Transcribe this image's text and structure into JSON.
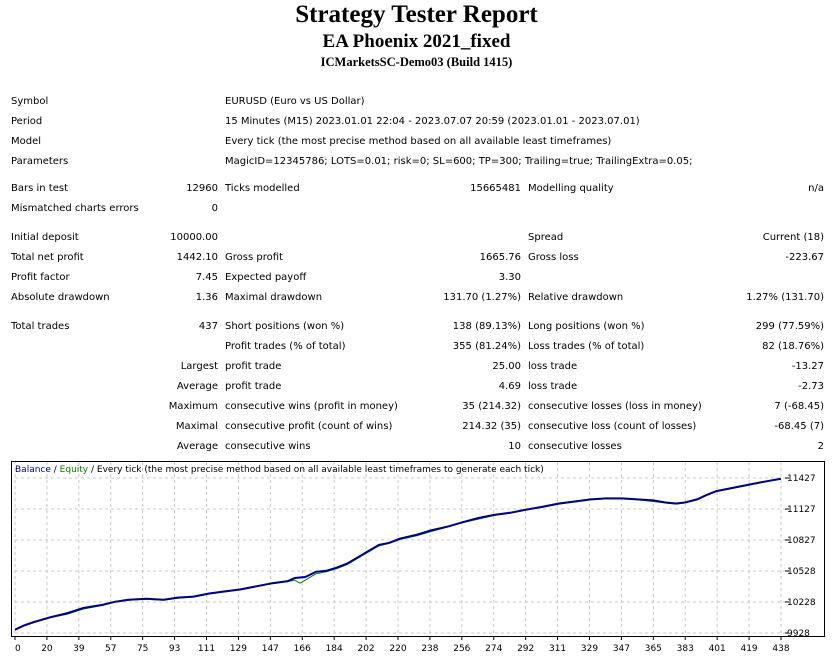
{
  "title": "Strategy Tester Report",
  "ea_name": "EA Phoenix 2021_fixed",
  "server": "ICMarketsSC-Demo03 (Build 1415)",
  "info": {
    "symbol_label": "Symbol",
    "symbol": "EURUSD (Euro vs US Dollar)",
    "period_label": "Period",
    "period": "15 Minutes (M15) 2023.01.01 22:04 - 2023.07.07 20:59 (2023.01.01 - 2023.07.01)",
    "model_label": "Model",
    "model": "Every tick (the most precise method based on all available least timeframes)",
    "params_label": "Parameters",
    "params": "MagicID=12345786; LOTS=0.01; risk=0; SL=600; TP=300; Trailing=true; TrailingExtra=0.05;"
  },
  "bars": {
    "label": "Bars in test",
    "value": "12960",
    "ticks_label": "Ticks modelled",
    "ticks": "15665481",
    "quality_label": "Modelling quality",
    "quality": "n/a"
  },
  "mismatch": {
    "label": "Mismatched charts errors",
    "value": "0"
  },
  "stats": {
    "initial_deposit_label": "Initial deposit",
    "initial_deposit": "10000.00",
    "spread_label": "Spread",
    "spread": "Current (18)",
    "net_profit_label": "Total net profit",
    "net_profit": "1442.10",
    "gross_profit_label": "Gross profit",
    "gross_profit": "1665.76",
    "gross_loss_label": "Gross loss",
    "gross_loss": "-223.67",
    "profit_factor_label": "Profit factor",
    "profit_factor": "7.45",
    "expected_payoff_label": "Expected payoff",
    "expected_payoff": "3.30",
    "abs_dd_label": "Absolute drawdown",
    "abs_dd": "1.36",
    "max_dd_label": "Maximal drawdown",
    "max_dd": "131.70 (1.27%)",
    "rel_dd_label": "Relative drawdown",
    "rel_dd": "1.27% (131.70)"
  },
  "trades": {
    "total_label": "Total trades",
    "total": "437",
    "short_label": "Short positions (won %)",
    "short": "138 (89.13%)",
    "long_label": "Long positions (won %)",
    "long": "299 (77.59%)",
    "profit_trades_label": "Profit trades (% of total)",
    "profit_trades": "355 (81.24%)",
    "loss_trades_label": "Loss trades (% of total)",
    "loss_trades": "82 (18.76%)",
    "largest_label": "Largest",
    "largest_profit_label": "profit trade",
    "largest_profit": "25.00",
    "largest_loss_label": "loss trade",
    "largest_loss": "-13.27",
    "average_label": "Average",
    "average_profit_label": "profit trade",
    "average_profit": "4.69",
    "average_loss_label": "loss trade",
    "average_loss": "-2.73",
    "maximum_label": "Maximum",
    "max_wins_label": "consecutive wins (profit in money)",
    "max_wins": "35 (214.32)",
    "max_losses_label": "consecutive losses (loss in money)",
    "max_losses": "7 (-68.45)",
    "maximal_label": "Maximal",
    "maxl_profit_label": "consecutive profit (count of wins)",
    "maxl_profit": "214.32 (35)",
    "maxl_loss_label": "consecutive loss (count of losses)",
    "maxl_loss": "-68.45 (7)",
    "avg_label": "Average",
    "avg_wins_label": "consecutive wins",
    "avg_wins": "10",
    "avg_losses_label": "consecutive losses",
    "avg_losses": "2"
  },
  "chart_data": {
    "type": "line",
    "legend": {
      "balance": "Balance",
      "sep1": " / ",
      "equity": "Equity",
      "rest": " / Every tick (the most precise method based on all available least timeframes to generate each tick)"
    },
    "colors": {
      "balance": "#00008B",
      "equity": "#008000",
      "grid": "#c8c8c8"
    },
    "x_ticks": [
      "0",
      "20",
      "39",
      "57",
      "75",
      "93",
      "111",
      "129",
      "147",
      "166",
      "184",
      "202",
      "220",
      "238",
      "256",
      "274",
      "292",
      "311",
      "329",
      "347",
      "365",
      "383",
      "401",
      "419",
      "438"
    ],
    "y_ticks": [
      "11427",
      "11127",
      "10827",
      "10528",
      "10228",
      "9928"
    ],
    "xlim": [
      0,
      438
    ],
    "ylim": [
      9928,
      11427
    ],
    "grid": true,
    "series": [
      {
        "name": "Balance",
        "x": [
          0,
          5,
          10,
          20,
          30,
          39,
          50,
          57,
          65,
          75,
          85,
          93,
          102,
          111,
          120,
          129,
          138,
          147,
          156,
          160,
          166,
          172,
          178,
          184,
          190,
          196,
          202,
          208,
          214,
          220,
          230,
          238,
          248,
          256,
          265,
          274,
          283,
          292,
          302,
          311,
          320,
          329,
          338,
          347,
          356,
          365,
          372,
          378,
          383,
          390,
          395,
          401,
          410,
          419,
          428,
          438
        ],
        "y": [
          9960,
          10000,
          10030,
          10080,
          10120,
          10170,
          10200,
          10230,
          10250,
          10260,
          10250,
          10270,
          10280,
          10310,
          10330,
          10350,
          10380,
          10410,
          10430,
          10460,
          10470,
          10520,
          10530,
          10560,
          10600,
          10660,
          10720,
          10780,
          10800,
          10840,
          10880,
          10920,
          10960,
          11000,
          11040,
          11070,
          11090,
          11120,
          11150,
          11180,
          11200,
          11220,
          11230,
          11230,
          11220,
          11210,
          11190,
          11180,
          11190,
          11220,
          11260,
          11300,
          11330,
          11360,
          11390,
          11420
        ]
      },
      {
        "name": "Equity",
        "x": [
          0,
          5,
          10,
          20,
          30,
          39,
          50,
          57,
          65,
          75,
          85,
          93,
          102,
          111,
          120,
          129,
          138,
          147,
          156,
          160,
          163,
          166,
          172,
          178,
          184,
          190,
          196,
          202,
          208,
          214,
          220,
          230,
          238,
          248,
          256,
          265,
          274,
          283,
          292,
          302,
          311,
          320,
          329,
          338,
          347,
          356,
          365,
          372,
          378,
          383,
          390,
          395,
          401,
          410,
          419,
          428,
          438
        ],
        "y": [
          9955,
          9995,
          10025,
          10075,
          10110,
          10160,
          10195,
          10225,
          10245,
          10255,
          10245,
          10265,
          10275,
          10305,
          10325,
          10345,
          10375,
          10405,
          10425,
          10440,
          10410,
          10440,
          10500,
          10520,
          10550,
          10590,
          10650,
          10710,
          10770,
          10795,
          10830,
          10870,
          10910,
          10955,
          10995,
          11030,
          11065,
          11085,
          11115,
          11145,
          11175,
          11195,
          11215,
          11225,
          11225,
          11215,
          11200,
          11185,
          11175,
          11185,
          11215,
          11255,
          11295,
          11325,
          11355,
          11385,
          11415
        ]
      }
    ]
  }
}
